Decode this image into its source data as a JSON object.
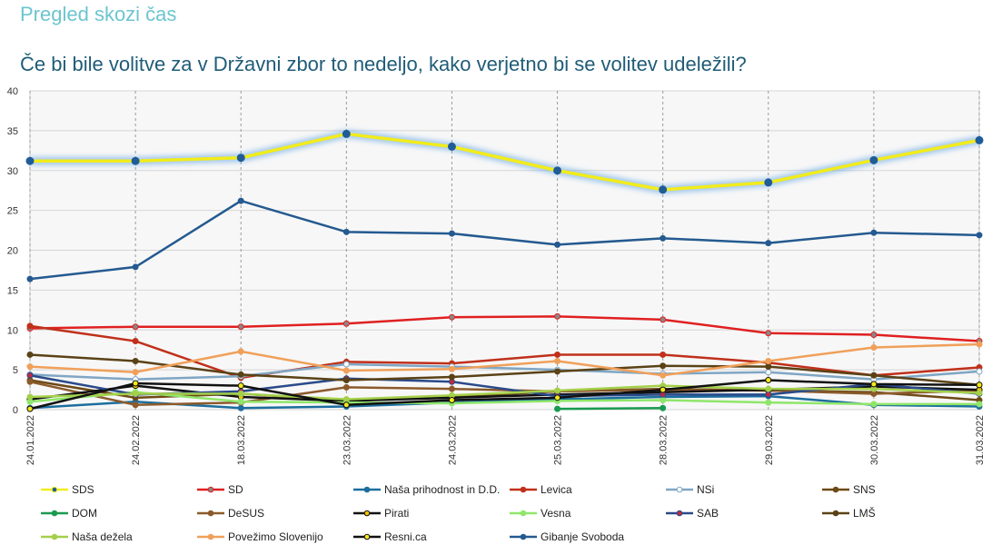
{
  "header": {
    "section_title": "Pregled skozi čas",
    "chart_title": "Če bi bile volitve za v Državni zbor to nedeljo, kako verjetno bi se volitev udeležili?"
  },
  "chart_data": {
    "type": "line",
    "title": "Če bi bile volitve za v Državni zbor to nedeljo, kako verjetno bi se volitev udeležili?",
    "xlabel": "",
    "ylabel": "",
    "ylim": [
      0,
      40
    ],
    "yticks": [
      0,
      5,
      10,
      15,
      20,
      25,
      30,
      35,
      40
    ],
    "grid": true,
    "legend_position": "bottom",
    "categories": [
      "24.01.2022",
      "24.02.2022",
      "18.03.2022",
      "23.03.2022",
      "24.03.2022",
      "25.03.2022",
      "28.03.2022",
      "29.03.2022",
      "30.03.2022",
      "31.03.2022"
    ],
    "series": [
      {
        "name": "SDS",
        "color": "#f2ec1b",
        "marker": "#1f5c99",
        "highlight": true,
        "values": [
          31.2,
          31.2,
          31.6,
          34.6,
          33.0,
          30.0,
          27.6,
          28.5,
          31.3,
          33.8
        ]
      },
      {
        "name": "SD",
        "color": "#e02020",
        "marker": "#888888",
        "values": [
          10.2,
          10.4,
          10.4,
          10.8,
          11.6,
          11.7,
          11.3,
          9.6,
          9.4,
          8.6
        ]
      },
      {
        "name": "Naša prihodnost in D.D.",
        "color": "#1c6e9e",
        "marker": "#1c6e9e",
        "values": [
          0.2,
          1.0,
          0.2,
          0.4,
          0.9,
          1.3,
          1.6,
          1.7,
          0.6,
          0.4
        ]
      },
      {
        "name": "Levica",
        "color": "#c0301a",
        "marker": "#c0301a",
        "values": [
          10.5,
          8.6,
          4.0,
          6.0,
          5.8,
          6.9,
          6.9,
          5.9,
          4.3,
          5.3
        ]
      },
      {
        "name": "NSi",
        "color": "#7fa6c4",
        "marker": "#ffffff",
        "values": [
          4.4,
          3.8,
          4.2,
          5.7,
          5.4,
          5.0,
          4.5,
          4.7,
          3.8,
          4.8
        ]
      },
      {
        "name": "SNS",
        "color": "#6e4a17",
        "marker": "#6e4a17",
        "values": [
          3.7,
          1.5,
          2.0,
          1.2,
          1.6,
          2.3,
          2.6,
          2.4,
          2.2,
          1.2
        ]
      },
      {
        "name": "DOM",
        "color": "#1a9a50",
        "marker": "#1a9a50",
        "values": [
          null,
          null,
          null,
          null,
          null,
          0.1,
          0.2,
          null,
          null,
          null
        ]
      },
      {
        "name": "DeSUS",
        "color": "#8c5a2b",
        "marker": "#8c5a2b",
        "values": [
          3.5,
          0.6,
          0.9,
          2.8,
          2.6,
          2.3,
          2.5,
          2.4,
          2.0,
          2.4
        ]
      },
      {
        "name": "Pirati",
        "color": "#111111",
        "marker": "#f0c000",
        "values": [
          1.3,
          3.0,
          1.6,
          1.1,
          1.5,
          1.9,
          2.2,
          2.5,
          2.9,
          2.5
        ]
      },
      {
        "name": "Vesna",
        "color": "#8fe66a",
        "marker": "#8fe66a",
        "values": [
          1.0,
          2.2,
          1.0,
          0.9,
          0.8,
          1.1,
          1.2,
          0.9,
          0.7,
          0.7
        ]
      },
      {
        "name": "SAB",
        "color": "#2a4a8a",
        "marker": "#c02a40",
        "values": [
          4.3,
          1.9,
          2.3,
          3.9,
          3.5,
          1.7,
          1.9,
          1.9,
          3.2,
          2.0
        ]
      },
      {
        "name": "LMŠ",
        "color": "#5a4216",
        "marker": "#5a4216",
        "values": [
          6.9,
          6.1,
          4.4,
          3.7,
          4.1,
          4.8,
          5.5,
          5.4,
          4.3,
          3.1
        ]
      },
      {
        "name": "Naša dežela",
        "color": "#a4d04a",
        "marker": "#a4d04a",
        "values": [
          1.6,
          2.0,
          2.0,
          1.3,
          1.8,
          2.4,
          3.0,
          2.6,
          2.6,
          2.1
        ]
      },
      {
        "name": "Povežimo Slovenijo",
        "color": "#f0a05a",
        "marker": "#f0a05a",
        "values": [
          5.4,
          4.7,
          7.3,
          4.9,
          5.1,
          6.1,
          4.3,
          6.1,
          7.8,
          8.2
        ]
      },
      {
        "name": "Resni.ca",
        "color": "#111111",
        "marker": "#f5e81b",
        "values": [
          0.1,
          3.3,
          3.0,
          0.6,
          1.2,
          1.5,
          2.5,
          3.7,
          3.2,
          3.1
        ]
      },
      {
        "name": "Gibanje Svoboda",
        "color": "#245a90",
        "marker": "#245a90",
        "values": [
          16.4,
          17.9,
          26.2,
          22.3,
          22.1,
          20.7,
          21.5,
          20.9,
          22.2,
          21.9
        ]
      }
    ]
  }
}
